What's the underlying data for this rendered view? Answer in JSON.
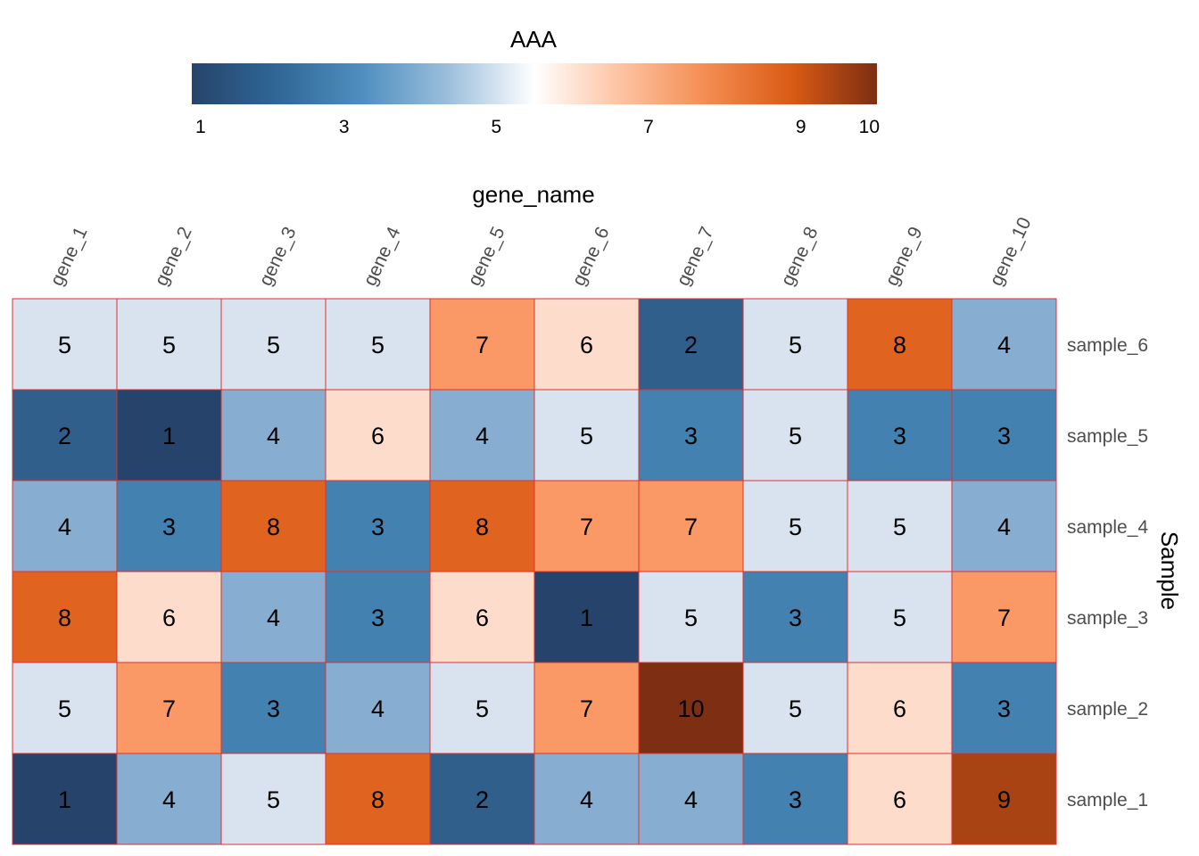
{
  "chart_data": {
    "type": "heatmap",
    "legend": {
      "title": "AAA",
      "ticks": [
        "1",
        "3",
        "5",
        "7",
        "9",
        "10"
      ],
      "tick_values": [
        1,
        3,
        5,
        7,
        9,
        10
      ],
      "range": [
        1,
        10
      ],
      "gradient": [
        "#26446b",
        "#2f6796",
        "#4f8fc0",
        "#9cbfdc",
        "#ffffff",
        "#fdc3a2",
        "#f48d52",
        "#da5b14",
        "#7d2e13"
      ],
      "placement": "top"
    },
    "xlabel": "gene_name",
    "ylabel": "Sample",
    "columns": [
      "gene_1",
      "gene_2",
      "gene_3",
      "gene_4",
      "gene_5",
      "gene_6",
      "gene_7",
      "gene_8",
      "gene_9",
      "gene_10"
    ],
    "rows": [
      "sample_6",
      "sample_5",
      "sample_4",
      "sample_3",
      "sample_2",
      "sample_1"
    ],
    "values": [
      [
        5,
        5,
        5,
        5,
        7,
        6,
        2,
        5,
        8,
        4
      ],
      [
        2,
        1,
        4,
        6,
        4,
        5,
        3,
        5,
        3,
        3
      ],
      [
        4,
        3,
        8,
        3,
        8,
        7,
        7,
        5,
        5,
        4
      ],
      [
        8,
        6,
        4,
        3,
        6,
        1,
        5,
        3,
        5,
        7
      ],
      [
        5,
        7,
        3,
        4,
        5,
        7,
        10,
        5,
        6,
        3
      ],
      [
        1,
        4,
        5,
        8,
        2,
        4,
        4,
        3,
        6,
        9
      ]
    ],
    "cell_colors": {
      "1": "#26446b",
      "2": "#2f5f8a",
      "3": "#4382b0",
      "4": "#87aed0",
      "5": "#d9e3ef",
      "6": "#fedccb",
      "7": "#fb9966",
      "8": "#e06320",
      "9": "#aa4314",
      "10": "#7d2e13"
    },
    "cell_border_color": "#e03030"
  }
}
